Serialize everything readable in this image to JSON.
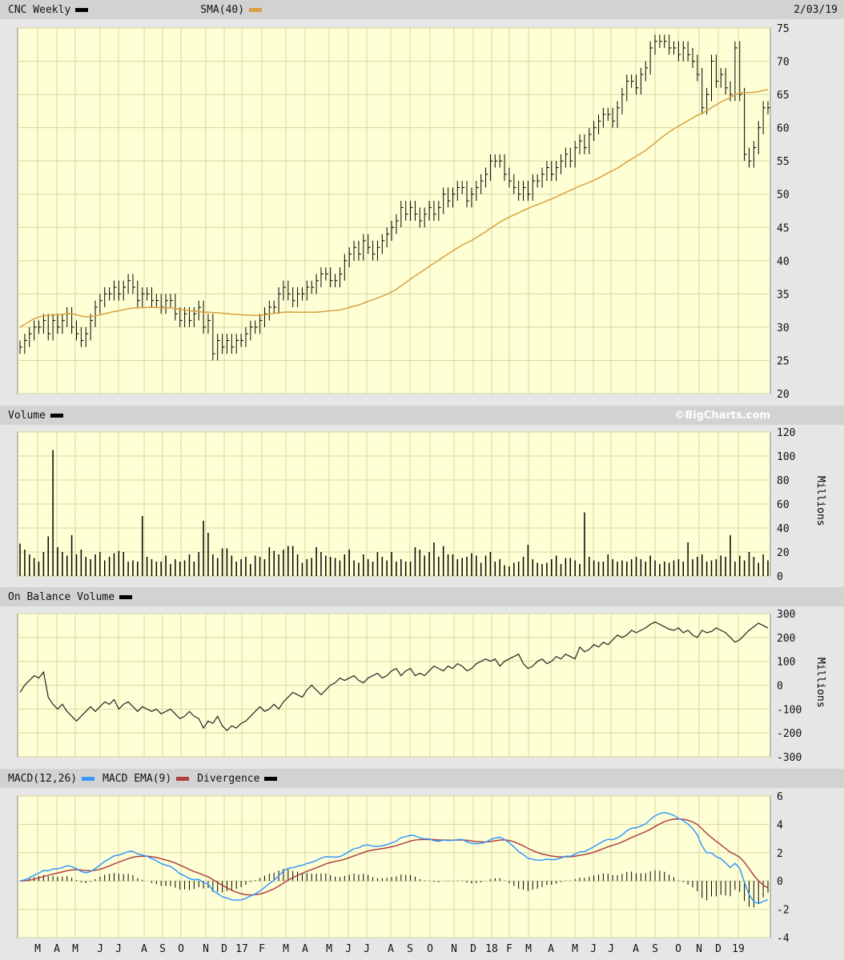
{
  "header": {
    "symbol_label": "CNC Weekly",
    "sma_label": "SMA(40)",
    "date": "2/03/19",
    "price_color": "#000000",
    "sma_color": "#d8a040"
  },
  "volume_panel": {
    "label": "Volume",
    "watermark": "©BigCharts.com",
    "unit": "Millions"
  },
  "obv_panel": {
    "label": "On Balance Volume",
    "unit": "Millions"
  },
  "macd_panel": {
    "macd_label": "MACD(12,26)",
    "ema_label": "MACD EMA(9)",
    "div_label": "Divergence",
    "macd_color": "#3399ff",
    "ema_color": "#b04040"
  },
  "chart_data": [
    {
      "type": "bar",
      "name": "price",
      "ylim": [
        20,
        75
      ],
      "yticks": [
        20,
        25,
        30,
        35,
        40,
        45,
        50,
        55,
        60,
        65,
        70,
        75
      ],
      "sma_period": 40,
      "close": [
        27,
        28,
        29,
        30,
        30,
        31,
        29,
        31,
        30,
        31,
        32,
        30,
        29,
        28,
        29,
        31,
        33,
        34,
        35,
        35,
        36,
        35,
        36,
        37,
        36,
        34,
        35,
        35,
        34,
        34,
        33,
        34,
        34,
        32,
        31,
        32,
        31,
        32,
        33,
        30,
        31,
        26,
        28,
        27,
        28,
        27,
        28,
        28,
        29,
        30,
        30,
        31,
        32,
        33,
        33,
        35,
        36,
        35,
        34,
        35,
        35,
        36,
        36,
        37,
        38,
        38,
        37,
        37,
        38,
        40,
        41,
        42,
        41,
        43,
        42,
        41,
        42,
        43,
        44,
        45,
        46,
        48,
        47,
        48,
        47,
        46,
        47,
        48,
        47,
        48,
        50,
        49,
        50,
        51,
        51,
        49,
        50,
        51,
        52,
        53,
        55,
        55,
        55,
        53,
        52,
        51,
        50,
        51,
        50,
        52,
        52,
        53,
        54,
        53,
        54,
        55,
        56,
        55,
        57,
        58,
        57,
        59,
        60,
        61,
        62,
        62,
        61,
        63,
        65,
        67,
        67,
        66,
        68,
        69,
        72,
        73,
        73,
        73,
        72,
        72,
        71,
        72,
        71,
        70,
        68,
        63,
        65,
        70,
        67,
        68,
        66,
        65,
        72,
        65,
        56,
        55,
        57,
        60,
        63,
        63
      ]
    },
    {
      "type": "bar",
      "name": "volume",
      "ylim": [
        0,
        120
      ],
      "yticks": [
        0,
        20,
        40,
        60,
        80,
        100,
        120
      ],
      "values": [
        27,
        22,
        18,
        15,
        12,
        20,
        33,
        105,
        24,
        20,
        17,
        34,
        18,
        22,
        16,
        14,
        18,
        20,
        13,
        16,
        19,
        21,
        20,
        12,
        13,
        12,
        50,
        16,
        14,
        12,
        12,
        17,
        10,
        14,
        12,
        13,
        18,
        12,
        20,
        46,
        36,
        18,
        15,
        23,
        23,
        17,
        12,
        14,
        16,
        10,
        17,
        16,
        14,
        24,
        21,
        18,
        22,
        25,
        25,
        18,
        11,
        14,
        15,
        24,
        20,
        17,
        16,
        15,
        13,
        18,
        22,
        13,
        11,
        18,
        14,
        12,
        20,
        16,
        13,
        20,
        12,
        14,
        12,
        12,
        24,
        22,
        17,
        20,
        28,
        16,
        25,
        18,
        18,
        14,
        15,
        16,
        19,
        17,
        11,
        17,
        20,
        12,
        14,
        9,
        8,
        11,
        12,
        16,
        26,
        14,
        11,
        10,
        11,
        14,
        17,
        10,
        15,
        15,
        13,
        10,
        53,
        16,
        13,
        12,
        12,
        18,
        14,
        12,
        13,
        12,
        14,
        16,
        14,
        12,
        17,
        13,
        10,
        12,
        11,
        13,
        14,
        12,
        28,
        14,
        16,
        18,
        12,
        13,
        14,
        17,
        16,
        34,
        12,
        17,
        13,
        20,
        16,
        11,
        18,
        13
      ]
    },
    {
      "type": "line",
      "name": "obv",
      "ylim": [
        -300,
        300
      ],
      "yticks": [
        -300,
        -200,
        -100,
        0,
        100,
        200,
        300
      ],
      "values": [
        -30,
        0,
        20,
        40,
        30,
        55,
        -50,
        -80,
        -100,
        -80,
        -110,
        -130,
        -150,
        -130,
        -110,
        -90,
        -110,
        -90,
        -70,
        -80,
        -60,
        -100,
        -80,
        -70,
        -90,
        -110,
        -90,
        -100,
        -110,
        -100,
        -120,
        -110,
        -100,
        -120,
        -140,
        -130,
        -110,
        -130,
        -140,
        -180,
        -150,
        -160,
        -130,
        -170,
        -190,
        -170,
        -180,
        -160,
        -150,
        -130,
        -110,
        -90,
        -110,
        -100,
        -80,
        -100,
        -70,
        -50,
        -30,
        -40,
        -50,
        -20,
        0,
        -20,
        -40,
        -20,
        0,
        10,
        30,
        20,
        30,
        40,
        20,
        10,
        30,
        40,
        50,
        30,
        40,
        60,
        70,
        40,
        60,
        70,
        40,
        50,
        40,
        60,
        80,
        70,
        60,
        80,
        70,
        90,
        80,
        60,
        70,
        90,
        100,
        110,
        100,
        110,
        80,
        100,
        110,
        120,
        130,
        90,
        70,
        80,
        100,
        110,
        90,
        100,
        120,
        110,
        130,
        120,
        110,
        160,
        140,
        150,
        170,
        160,
        180,
        170,
        190,
        210,
        200,
        210,
        230,
        220,
        230,
        240,
        255,
        265,
        255,
        245,
        235,
        230,
        240,
        220,
        230,
        210,
        200,
        230,
        220,
        225,
        240,
        230,
        220,
        200,
        180,
        190,
        210,
        230,
        245,
        260,
        250,
        240
      ]
    },
    {
      "type": "line",
      "name": "macd",
      "ylim": [
        -4,
        6
      ],
      "yticks": [
        -4,
        -2,
        0,
        2,
        4,
        6
      ],
      "fast": 12,
      "slow": 26,
      "signal": 9
    },
    {
      "type": "axis",
      "xticks": [
        "M",
        "A",
        "M",
        "J",
        "J",
        "A",
        "S",
        "O",
        "N",
        "D",
        "17",
        "F",
        "M",
        "A",
        "M",
        "J",
        "J",
        "A",
        "S",
        "O",
        "N",
        "D",
        "18",
        "F",
        "M",
        "A",
        "M",
        "J",
        "J",
        "A",
        "S",
        "O",
        "N",
        "D",
        "19"
      ]
    }
  ]
}
